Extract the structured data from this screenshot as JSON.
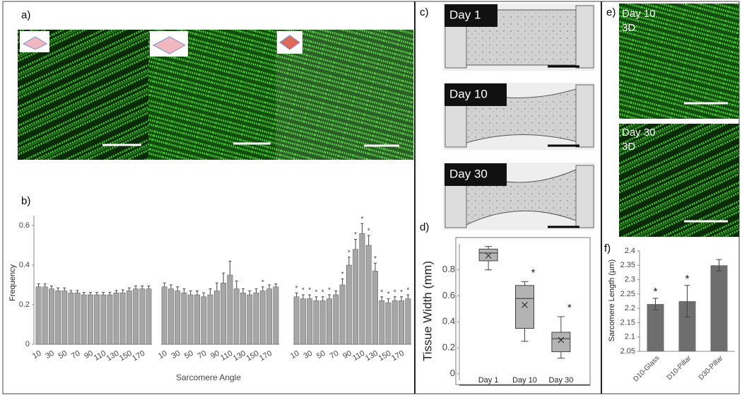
{
  "panels": [
    "a)",
    "b)",
    "c)",
    "d)",
    "e)",
    "f)"
  ],
  "images": {
    "c": [
      "Day 1",
      "Day 10",
      "Day 30"
    ],
    "e": [
      [
        "Day 10",
        "3D"
      ],
      [
        "Day 30",
        "3D"
      ]
    ]
  },
  "chart_data": [
    {
      "type": "bar",
      "ylabel": "Frequency",
      "xlabel": "Sarcomere Angle",
      "ylim": [
        0,
        0.65
      ],
      "yticks": [
        0,
        0.2,
        0.4,
        0.6
      ],
      "color": "#a6a6a6",
      "categories": [
        10,
        null,
        30,
        null,
        50,
        null,
        70,
        null,
        90,
        null,
        110,
        null,
        130,
        null,
        150,
        null,
        170,
        null
      ],
      "series": [
        {
          "values": [
            0.29,
            0.29,
            0.28,
            0.27,
            0.27,
            0.26,
            0.26,
            0.25,
            0.25,
            0.25,
            0.25,
            0.25,
            0.26,
            0.26,
            0.27,
            0.28,
            0.28,
            0.28
          ],
          "errors": [
            0.015,
            0.015,
            0.015,
            0.015,
            0.015,
            0.012,
            0.012,
            0.012,
            0.012,
            0.012,
            0.012,
            0.012,
            0.012,
            0.015,
            0.015,
            0.015,
            0.015,
            0.015
          ],
          "annotations": []
        },
        {
          "values": [
            0.29,
            0.28,
            0.27,
            0.26,
            0.25,
            0.25,
            0.24,
            0.25,
            0.27,
            0.31,
            0.35,
            0.28,
            0.26,
            0.25,
            0.26,
            0.27,
            0.28,
            0.29
          ],
          "errors": [
            0.02,
            0.02,
            0.02,
            0.02,
            0.02,
            0.02,
            0.02,
            0.03,
            0.04,
            0.05,
            0.07,
            0.04,
            0.02,
            0.02,
            0.02,
            0.02,
            0.02,
            0.015
          ],
          "annotations": [
            {
              "text": "*",
              "index": 15
            }
          ]
        },
        {
          "values": [
            0.24,
            0.23,
            0.23,
            0.22,
            0.22,
            0.23,
            0.25,
            0.3,
            0.4,
            0.48,
            0.56,
            0.5,
            0.37,
            0.22,
            0.21,
            0.22,
            0.22,
            0.23
          ],
          "errors": [
            0.02,
            0.02,
            0.02,
            0.02,
            0.02,
            0.02,
            0.02,
            0.03,
            0.04,
            0.05,
            0.05,
            0.05,
            0.04,
            0.02,
            0.02,
            0.02,
            0.02,
            0.02
          ],
          "annotations": [
            {
              "text": "*",
              "index": 0
            },
            {
              "text": "*",
              "index": 1
            },
            {
              "text": "*",
              "index": 2
            },
            {
              "text": "*",
              "index": 3
            },
            {
              "text": "*",
              "index": 4
            },
            {
              "text": "*",
              "index": 5
            },
            {
              "text": "*",
              "index": 7
            },
            {
              "text": "*",
              "index": 8
            },
            {
              "text": "*",
              "index": 9
            },
            {
              "text": "*",
              "index": 10
            },
            {
              "text": "*",
              "index": 11
            },
            {
              "text": "*",
              "index": 12
            },
            {
              "text": "*",
              "index": 13
            },
            {
              "text": "*",
              "index": 14
            },
            {
              "text": "*",
              "index": 15
            },
            {
              "text": "*",
              "index": 16
            },
            {
              "text": "*",
              "index": 17
            }
          ]
        }
      ]
    },
    {
      "type": "box",
      "ylabel": "Tissue Width (mm)",
      "ylim": [
        -0.05,
        1.0
      ],
      "yticks": [
        0,
        0.2,
        0.4,
        0.6,
        0.8
      ],
      "categories": [
        "Day 1",
        "Day 10",
        "Day 30"
      ],
      "color": "#b3b3b3",
      "boxes": [
        {
          "min": 0.8,
          "q1": 0.87,
          "median": 0.93,
          "q3": 0.96,
          "max": 0.98,
          "mean": 0.91
        },
        {
          "min": 0.25,
          "q1": 0.35,
          "median": 0.58,
          "q3": 0.68,
          "max": 0.71,
          "mean": 0.53
        },
        {
          "min": 0.12,
          "q1": 0.17,
          "median": 0.27,
          "q3": 0.32,
          "max": 0.44,
          "mean": 0.26
        }
      ],
      "annotations": [
        {
          "text": "*",
          "index": 1
        },
        {
          "text": "*",
          "index": 2
        }
      ]
    },
    {
      "type": "bar",
      "ylabel": "Sarcomere Length (µm)",
      "ylim": [
        2.05,
        2.4
      ],
      "yticks": [
        2.05,
        2.1,
        2.15,
        2.2,
        2.25,
        2.3,
        2.35,
        2.4
      ],
      "color": "#6e6e6e",
      "categories": [
        "D10-Glass",
        "D10-Pillar",
        "D30-Pillar"
      ],
      "values": [
        2.215,
        2.225,
        2.35
      ],
      "errors": [
        0.02,
        0.055,
        0.02
      ],
      "annotations": [
        {
          "text": "*",
          "index": 0
        },
        {
          "text": "*",
          "index": 1
        }
      ]
    }
  ]
}
